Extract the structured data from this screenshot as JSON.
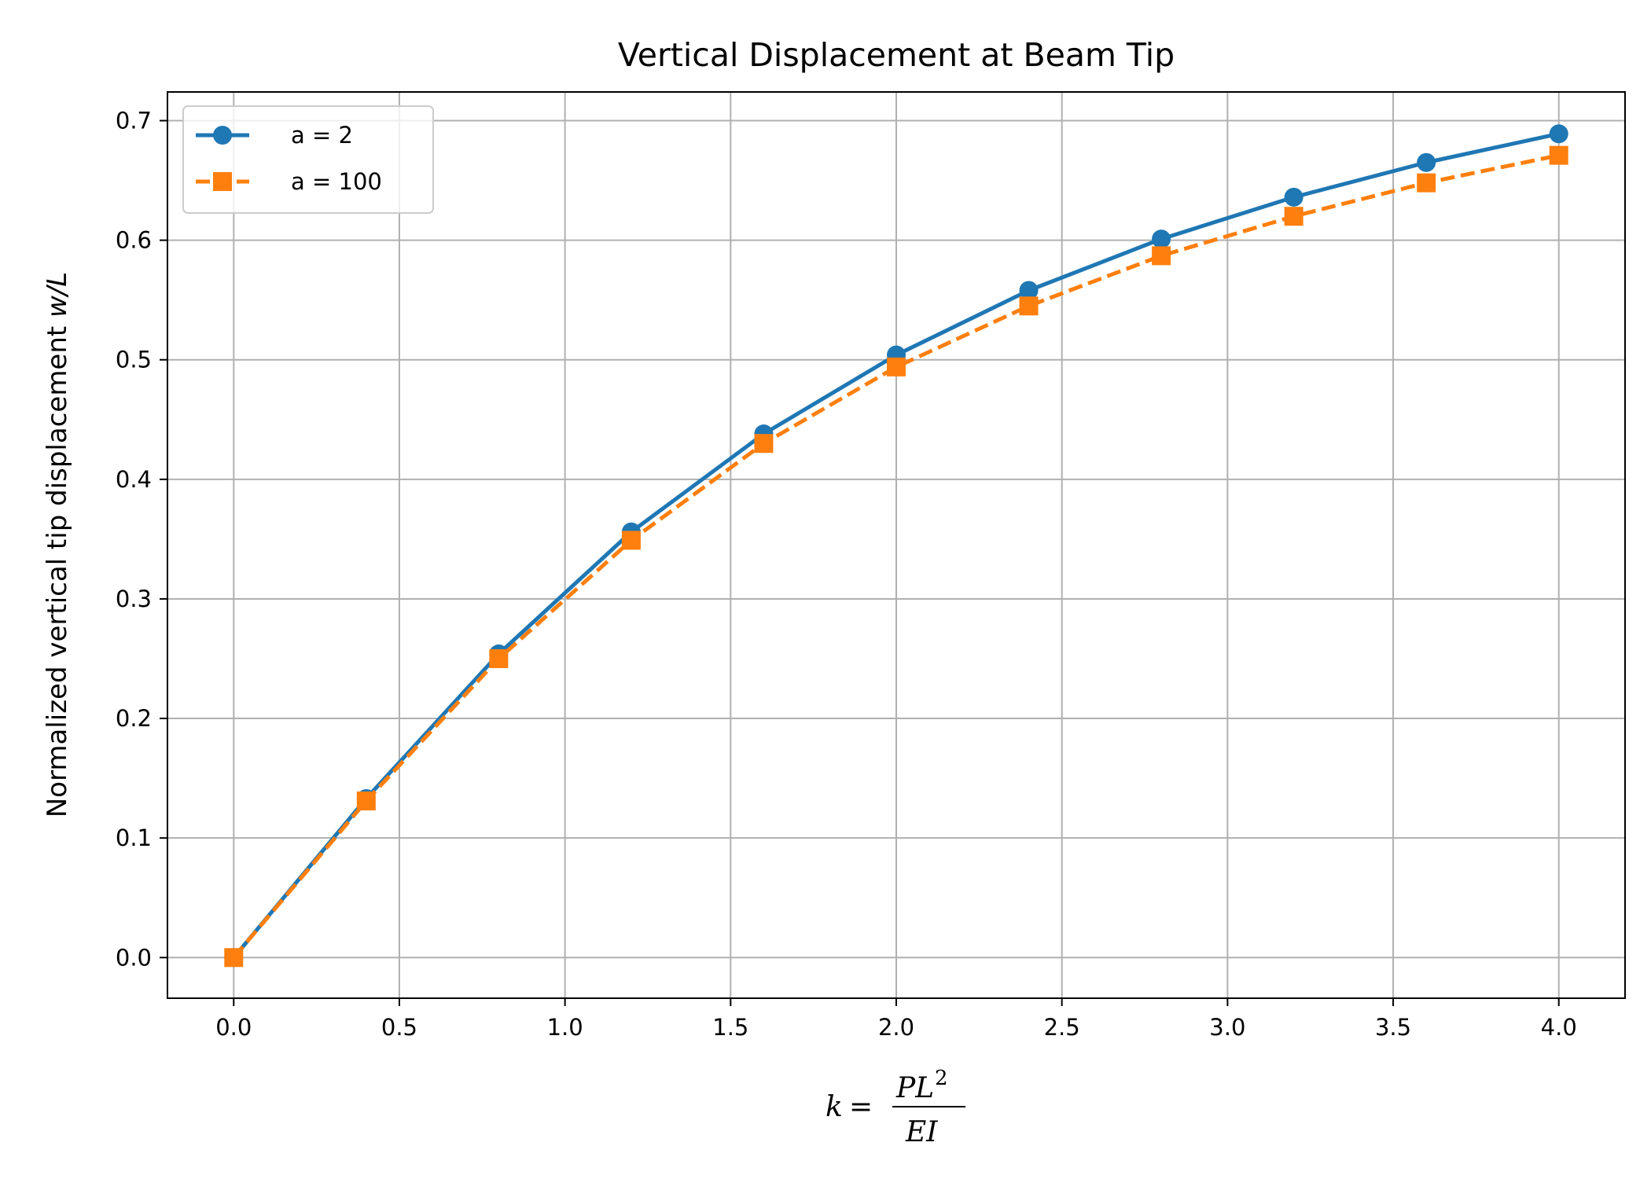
{
  "chart_data": {
    "type": "line",
    "title": "Vertical Displacement at Beam Tip",
    "xlabel": "k = PL²/EI",
    "ylabel": "Normalized vertical tip displacement w/L",
    "xlim": [
      -0.2,
      4.2
    ],
    "ylim": [
      -0.034,
      0.724
    ],
    "xticks": [
      "0.0",
      "0.5",
      "1.0",
      "1.5",
      "2.0",
      "2.5",
      "3.0",
      "3.5",
      "4.0"
    ],
    "yticks": [
      "0.0",
      "0.1",
      "0.2",
      "0.3",
      "0.4",
      "0.5",
      "0.6",
      "0.7"
    ],
    "grid": true,
    "legend_position": "upper-left",
    "x": [
      0.0,
      0.4,
      0.8,
      1.2,
      1.6,
      2.0,
      2.4,
      2.8,
      3.2,
      3.6,
      4.0
    ],
    "series": [
      {
        "name": "a = 2",
        "color": "#1f77b4",
        "marker": "circle",
        "linestyle": "solid",
        "values": [
          0.0,
          0.133,
          0.254,
          0.356,
          0.438,
          0.504,
          0.558,
          0.601,
          0.636,
          0.665,
          0.689
        ]
      },
      {
        "name": "a = 100",
        "color": "#ff7f0e",
        "marker": "square",
        "linestyle": "dashed",
        "values": [
          0.0,
          0.131,
          0.25,
          0.349,
          0.43,
          0.494,
          0.545,
          0.587,
          0.62,
          0.648,
          0.671
        ]
      }
    ]
  }
}
